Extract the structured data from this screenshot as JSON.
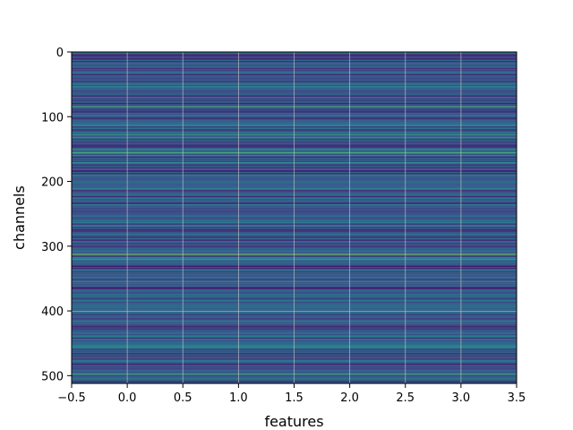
{
  "chart_data": {
    "type": "heatmap",
    "title": "",
    "xlabel": "features",
    "ylabel": "channels",
    "xlim": [
      -0.5,
      3.5
    ],
    "ylim": [
      512,
      0
    ],
    "rows": 512,
    "cols": 4,
    "colormap": "viridis",
    "grid": true,
    "row_pattern": "values vary by channel row and are constant across all features",
    "xticks": [
      {
        "value": -0.5,
        "label": "−0.5"
      },
      {
        "value": 0.0,
        "label": "0.0"
      },
      {
        "value": 0.5,
        "label": "0.5"
      },
      {
        "value": 1.0,
        "label": "1.0"
      },
      {
        "value": 1.5,
        "label": "1.5"
      },
      {
        "value": 2.0,
        "label": "2.0"
      },
      {
        "value": 2.5,
        "label": "2.5"
      },
      {
        "value": 3.0,
        "label": "3.0"
      },
      {
        "value": 3.5,
        "label": "3.5"
      }
    ],
    "yticks": [
      {
        "value": 0,
        "label": "0"
      },
      {
        "value": 100,
        "label": "100"
      },
      {
        "value": 200,
        "label": "200"
      },
      {
        "value": 300,
        "label": "300"
      },
      {
        "value": 400,
        "label": "400"
      },
      {
        "value": 500,
        "label": "500"
      }
    ],
    "highlight_rows": [
      {
        "row": 84,
        "value": 0.75
      },
      {
        "row": 128,
        "value": 0.7
      },
      {
        "row": 155,
        "value": 0.72
      },
      {
        "row": 170,
        "value": 0.55
      },
      {
        "row": 210,
        "value": 0.55
      },
      {
        "row": 236,
        "value": 0.5
      },
      {
        "row": 312,
        "value": 0.88
      },
      {
        "row": 320,
        "value": 0.6
      },
      {
        "row": 355,
        "value": 0.55
      },
      {
        "row": 400,
        "value": 0.78
      },
      {
        "row": 415,
        "value": 0.55
      },
      {
        "row": 455,
        "value": 0.55
      },
      {
        "row": 497,
        "value": 0.72
      }
    ]
  }
}
